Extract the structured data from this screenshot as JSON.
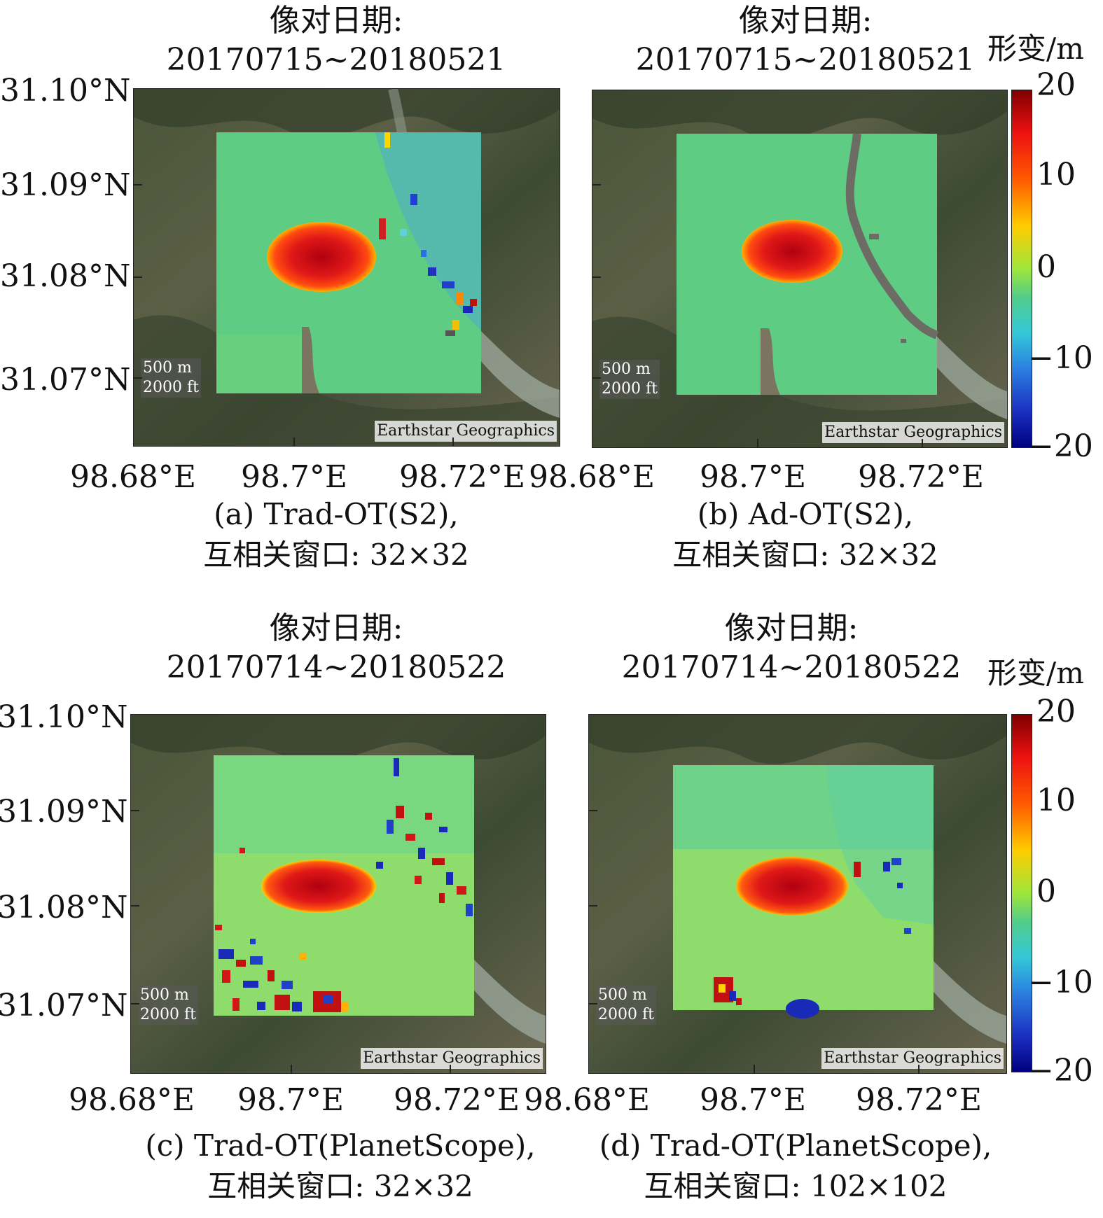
{
  "panels": [
    {
      "id": "a",
      "title_line1": "像对日期:",
      "title_line2": "20170715~20180521",
      "caption_line1": "(a) Trad-OT(S2),",
      "caption_line2": "互相关窗口: 32×32",
      "scale_m": "500 m",
      "scale_ft": "2000 ft",
      "attribution": "Earthstar Geographics"
    },
    {
      "id": "b",
      "title_line1": "像对日期:",
      "title_line2": "20170715~20180521",
      "caption_line1": "(b) Ad-OT(S2),",
      "caption_line2": "互相关窗口: 32×32",
      "scale_m": "500 m",
      "scale_ft": "2000 ft",
      "attribution": "Earthstar Geographics"
    },
    {
      "id": "c",
      "title_line1": "像对日期:",
      "title_line2": "20170714~20180522",
      "caption_line1": "(c) Trad-OT(PlanetScope),",
      "caption_line2": "互相关窗口: 32×32",
      "scale_m": "500 m",
      "scale_ft": "2000 ft",
      "attribution": "Earthstar Geographics"
    },
    {
      "id": "d",
      "title_line1": "像对日期:",
      "title_line2": "20170714~20180522",
      "caption_line1": "(d) Trad-OT(PlanetScope),",
      "caption_line2": "互相关窗口: 102×102",
      "scale_m": "500 m",
      "scale_ft": "2000 ft",
      "attribution": "Earthstar Geographics"
    }
  ],
  "latitude_labels": [
    "31.10°N",
    "31.09°N",
    "31.08°N",
    "31.07°N"
  ],
  "longitude_labels": [
    "98.68°E",
    "98.7°E",
    "98.72°E"
  ],
  "colorbar": {
    "unit": "形变/m",
    "ticks": [
      "20",
      "10",
      "0",
      "−10",
      "−20"
    ],
    "range": [
      -20,
      20
    ]
  }
}
